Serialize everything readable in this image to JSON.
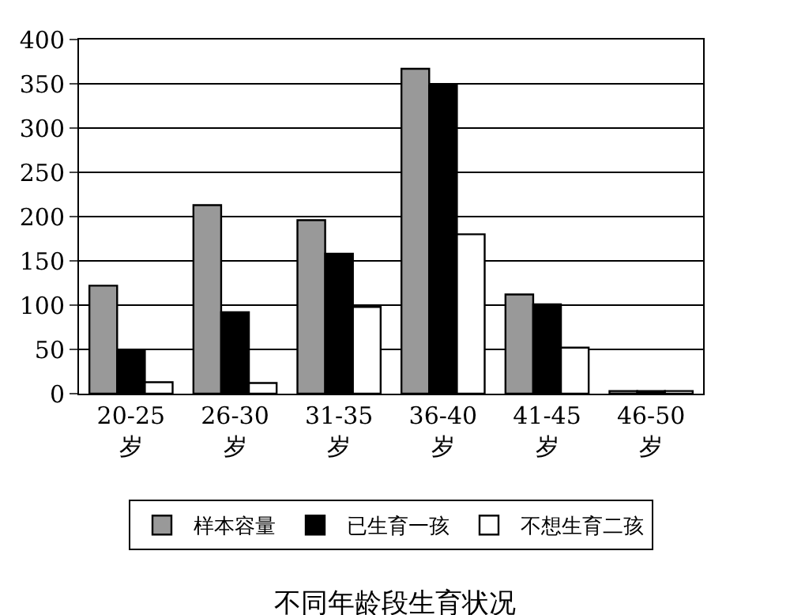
{
  "chart_data": {
    "type": "bar",
    "title": "不同年龄段生育状况",
    "categories": [
      "20-25\n岁",
      "26-30\n岁",
      "31-35\n岁",
      "36-40\n岁",
      "41-45\n岁",
      "46-50\n岁"
    ],
    "series": [
      {
        "name": "样本容量",
        "color": "#999999",
        "values": [
          122,
          213,
          196,
          367,
          112,
          3
        ]
      },
      {
        "name": "已生育一孩",
        "color": "#000000",
        "values": [
          48,
          92,
          158,
          348,
          101,
          3
        ]
      },
      {
        "name": "不想生育二孩",
        "color": "#ffffff",
        "values": [
          13,
          12,
          98,
          180,
          52,
          3
        ]
      }
    ],
    "ylim": [
      0,
      400
    ],
    "yticks": [
      0,
      50,
      100,
      150,
      200,
      250,
      300,
      350,
      400
    ],
    "grid": "y",
    "legend": "bottom"
  }
}
